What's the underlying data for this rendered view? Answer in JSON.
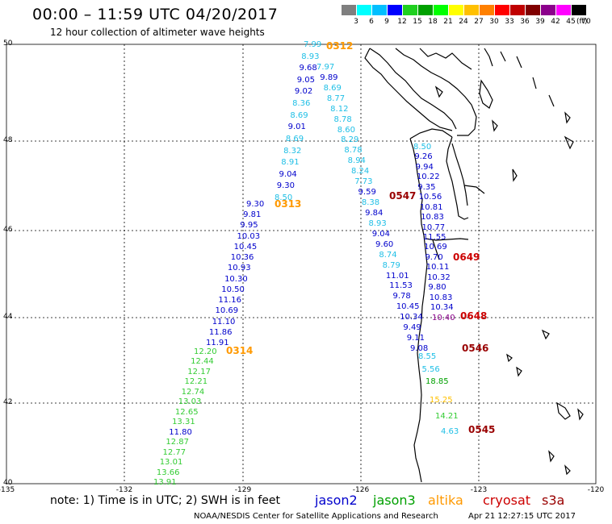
{
  "title": "00:00 – 11:59 UTC 04/20/2017",
  "subtitle": "12 hour collection of altimeter wave heights",
  "colorbar": {
    "unit": "(ft)",
    "levels": [
      "3",
      "6",
      "9",
      "12",
      "15",
      "18",
      "21",
      "24",
      "27",
      "30",
      "33",
      "36",
      "39",
      "42",
      "45",
      "70"
    ],
    "colors": [
      "#7f7f7f",
      "#00ffff",
      "#00bfff",
      "#0000ff",
      "#1fd01f",
      "#00a000",
      "#00ff00",
      "#ffff00",
      "#ffc000",
      "#ff8000",
      "#ff0000",
      "#c00000",
      "#800000",
      "#8b008b",
      "#ff00ff",
      "#000000"
    ]
  },
  "axes": {
    "lat_labels": [
      "50",
      "48",
      "46",
      "44",
      "42",
      "40"
    ],
    "lon_labels": [
      "-135",
      "-132",
      "-129",
      "-126",
      "-123",
      "-120"
    ]
  },
  "tracks": [
    {
      "time": "0312",
      "time_color": "#ff9900",
      "points": [
        {
          "v": "7.99",
          "c": "#1fbfe6"
        },
        {
          "v": "8.93",
          "c": "#1fbfe6"
        },
        {
          "v": "9.68",
          "c": "#0000cc"
        },
        {
          "v": "9.05",
          "c": "#0000cc"
        },
        {
          "v": "9.02",
          "c": "#0000cc"
        },
        {
          "v": "8.36",
          "c": "#1fbfe6"
        },
        {
          "v": "8.69",
          "c": "#1fbfe6"
        },
        {
          "v": "9.01",
          "c": "#0000cc"
        },
        {
          "v": "8.69",
          "c": "#1fbfe6"
        },
        {
          "v": "8.32",
          "c": "#1fbfe6"
        },
        {
          "v": "8.91",
          "c": "#1fbfe6"
        },
        {
          "v": "9.04",
          "c": "#0000cc"
        },
        {
          "v": "9.30",
          "c": "#0000cc"
        },
        {
          "v": "8.50",
          "c": "#1fbfe6"
        }
      ]
    },
    {
      "time": "0313",
      "time_color": "#ff9900",
      "points": [
        {
          "v": "9.30",
          "c": "#0000cc"
        },
        {
          "v": "9.81",
          "c": "#0000cc"
        },
        {
          "v": "9.95",
          "c": "#0000cc"
        },
        {
          "v": "10.03",
          "c": "#0000cc"
        },
        {
          "v": "10.45",
          "c": "#0000cc"
        },
        {
          "v": "10.36",
          "c": "#0000cc"
        },
        {
          "v": "10.93",
          "c": "#0000cc"
        },
        {
          "v": "10.30",
          "c": "#0000cc"
        },
        {
          "v": "10.50",
          "c": "#0000cc"
        },
        {
          "v": "11.16",
          "c": "#0000cc"
        },
        {
          "v": "10.69",
          "c": "#0000cc"
        },
        {
          "v": "11.10",
          "c": "#0000cc"
        },
        {
          "v": "11.86",
          "c": "#0000cc"
        },
        {
          "v": "11.91",
          "c": "#0000cc"
        }
      ]
    },
    {
      "time": "0314",
      "time_color": "#ff9900",
      "points": [
        {
          "v": "12.20",
          "c": "#33cc33"
        },
        {
          "v": "12.44",
          "c": "#33cc33"
        },
        {
          "v": "12.17",
          "c": "#33cc33"
        },
        {
          "v": "12.21",
          "c": "#33cc33"
        },
        {
          "v": "12.74",
          "c": "#33cc33"
        },
        {
          "v": "13.03",
          "c": "#33cc33"
        },
        {
          "v": "12.65",
          "c": "#33cc33"
        },
        {
          "v": "13.31",
          "c": "#33cc33"
        },
        {
          "v": "11.80",
          "c": "#0000cc"
        },
        {
          "v": "12.87",
          "c": "#33cc33"
        },
        {
          "v": "12.77",
          "c": "#33cc33"
        },
        {
          "v": "13.01",
          "c": "#33cc33"
        },
        {
          "v": "13.66",
          "c": "#33cc33"
        },
        {
          "v": "13.91",
          "c": "#33cc33"
        }
      ]
    },
    {
      "time": "0547",
      "time_color": "#990000",
      "points": [
        {
          "v": "7.97",
          "c": "#1fbfe6"
        },
        {
          "v": "9.89",
          "c": "#0000cc"
        },
        {
          "v": "8.69",
          "c": "#1fbfe6"
        },
        {
          "v": "8.77",
          "c": "#1fbfe6"
        },
        {
          "v": "8.12",
          "c": "#1fbfe6"
        },
        {
          "v": "8.78",
          "c": "#1fbfe6"
        },
        {
          "v": "8.60",
          "c": "#1fbfe6"
        },
        {
          "v": "8.29",
          "c": "#1fbfe6"
        },
        {
          "v": "8.78",
          "c": "#1fbfe6"
        },
        {
          "v": "8.94",
          "c": "#1fbfe6"
        },
        {
          "v": "8.24",
          "c": "#1fbfe6"
        },
        {
          "v": "7.73",
          "c": "#1fbfe6"
        },
        {
          "v": "9.59",
          "c": "#0000cc"
        },
        {
          "v": "8.38",
          "c": "#1fbfe6"
        },
        {
          "v": "9.84",
          "c": "#0000cc"
        },
        {
          "v": "8.93",
          "c": "#1fbfe6"
        },
        {
          "v": "9.04",
          "c": "#0000cc"
        },
        {
          "v": "9.60",
          "c": "#0000cc"
        },
        {
          "v": "8.74",
          "c": "#1fbfe6"
        },
        {
          "v": "8.79",
          "c": "#1fbfe6"
        },
        {
          "v": "11.01",
          "c": "#0000cc"
        },
        {
          "v": "11.53",
          "c": "#0000cc"
        },
        {
          "v": "9.78",
          "c": "#0000cc"
        },
        {
          "v": "10.45",
          "c": "#0000cc"
        },
        {
          "v": "10.34",
          "c": "#0000cc"
        },
        {
          "v": "9.49",
          "c": "#0000cc"
        },
        {
          "v": "9.11",
          "c": "#0000cc"
        },
        {
          "v": "9.08",
          "c": "#0000cc"
        }
      ]
    },
    {
      "time": "0546",
      "time_color": "#990000",
      "points": [
        {
          "v": "8.55",
          "c": "#1fbfe6"
        },
        {
          "v": "5.56",
          "c": "#1fbfe6"
        },
        {
          "v": "18.85",
          "c": "#00a000"
        }
      ]
    },
    {
      "time": "0545",
      "time_color": "#990000",
      "points": [
        {
          "v": "15.25",
          "c": "#ffc000"
        },
        {
          "v": "14.21",
          "c": "#33cc33"
        },
        {
          "v": "4.63",
          "c": "#1fbfe6"
        }
      ]
    },
    {
      "time": "0649",
      "time_color": "#cc0000",
      "points": [
        {
          "v": "8.50",
          "c": "#1fbfe6"
        },
        {
          "v": "9.26",
          "c": "#0000cc"
        },
        {
          "v": "9.94",
          "c": "#0000cc"
        },
        {
          "v": "10.22",
          "c": "#0000cc"
        },
        {
          "v": "9.35",
          "c": "#0000cc"
        },
        {
          "v": "10.56",
          "c": "#0000cc"
        },
        {
          "v": "10.81",
          "c": "#0000cc"
        },
        {
          "v": "10.83",
          "c": "#0000cc"
        },
        {
          "v": "10.77",
          "c": "#0000cc"
        },
        {
          "v": "11.55",
          "c": "#0000cc"
        },
        {
          "v": "10.69",
          "c": "#0000cc"
        },
        {
          "v": "9.70",
          "c": "#0000cc"
        },
        {
          "v": "10.11",
          "c": "#0000cc"
        },
        {
          "v": "10.32",
          "c": "#0000cc"
        },
        {
          "v": "9.80",
          "c": "#0000cc"
        },
        {
          "v": "10.83",
          "c": "#0000cc"
        },
        {
          "v": "10.34",
          "c": "#0000cc"
        }
      ]
    },
    {
      "time": "0648",
      "time_color": "#cc0000",
      "points": [
        {
          "v": "10.40",
          "c": "#8b008b"
        }
      ]
    }
  ],
  "note": "note: 1) Time is in UTC; 2) SWH is in feet",
  "legend": [
    {
      "name": "jason2",
      "color": "#0000cc"
    },
    {
      "name": "jason3",
      "color": "#00a000"
    },
    {
      "name": "altika",
      "color": "#ff9900"
    },
    {
      "name": "cryosat",
      "color": "#cc0000"
    },
    {
      "name": "s3a",
      "color": "#990000"
    }
  ],
  "footer": "NOAA/NESDIS Center for Satellite Applications and Research",
  "timestamp": "Apr 21 12:27:15 UTC 2017"
}
